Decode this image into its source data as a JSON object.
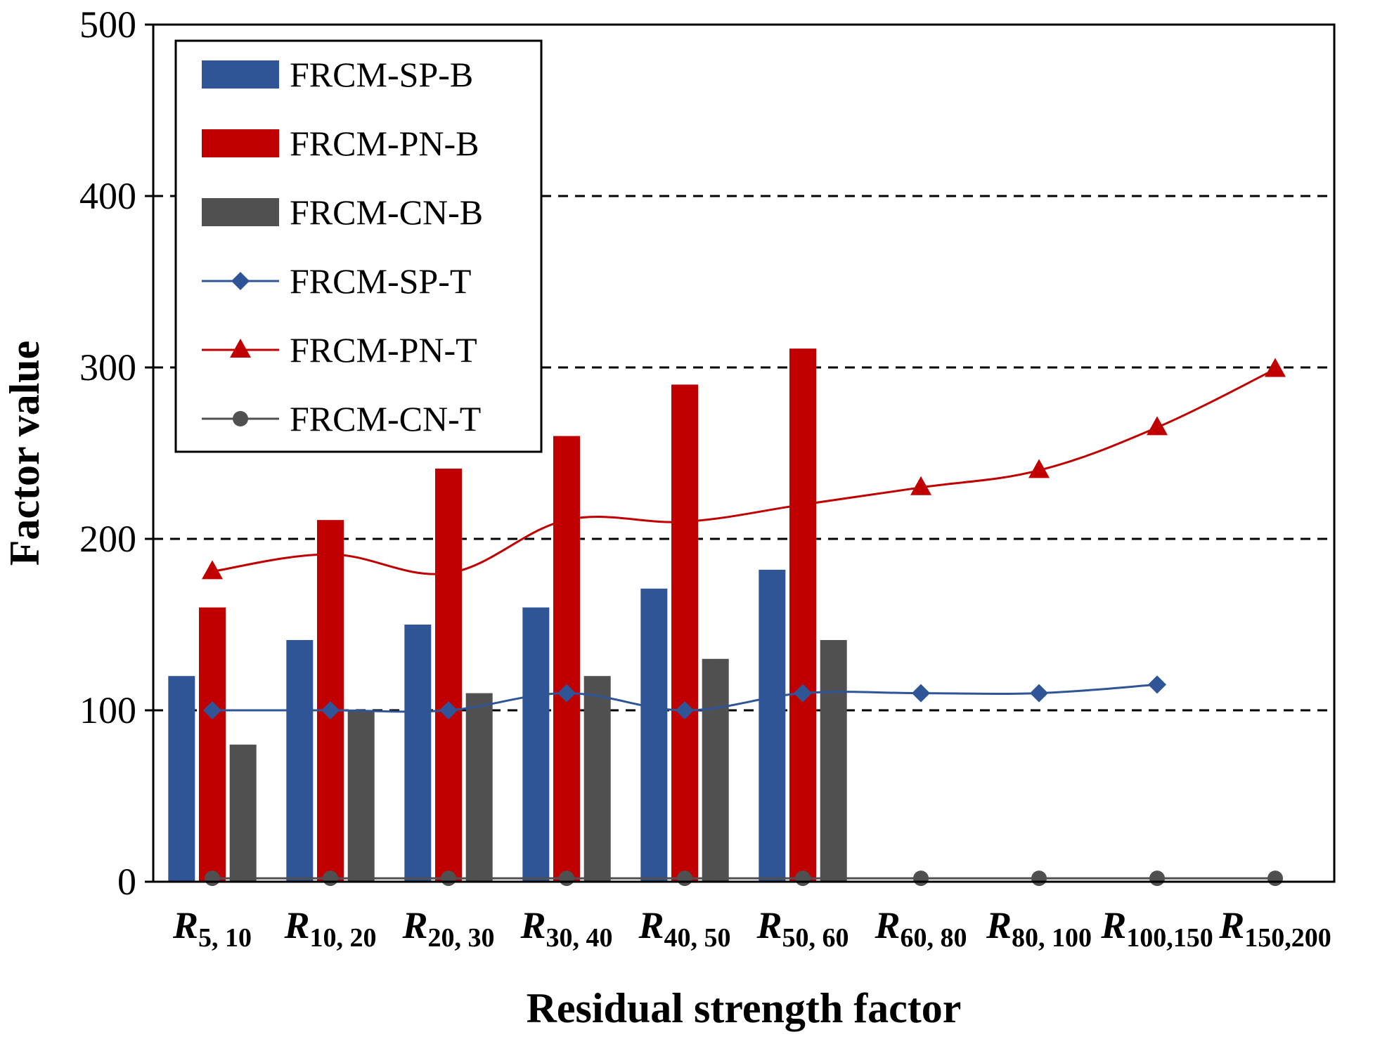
{
  "chart_data": {
    "type": "bar",
    "xlabel": "Residual strength factor",
    "ylabel": "Factor value",
    "ylim": [
      0,
      500
    ],
    "yticks": [
      0,
      100,
      200,
      300,
      400,
      500
    ],
    "grid": "dashed horizontal at 100, 200, 300, 400",
    "legend_position": "top-left",
    "categories": [
      {
        "main": "R",
        "sub": "5, 10"
      },
      {
        "main": "R",
        "sub": "10, 20"
      },
      {
        "main": "R",
        "sub": "20, 30"
      },
      {
        "main": "R",
        "sub": "30, 40"
      },
      {
        "main": "R",
        "sub": "40, 50"
      },
      {
        "main": "R",
        "sub": "50, 60"
      },
      {
        "main": "R",
        "sub": "60, 80"
      },
      {
        "main": "R",
        "sub": "80, 100"
      },
      {
        "main": "R",
        "sub": "100,150"
      },
      {
        "main": "R",
        "sub": "150,200"
      }
    ],
    "bar_series": [
      {
        "name": "FRCM-SP-B",
        "color": "#2F5597",
        "values": [
          120,
          141,
          150,
          160,
          171,
          182,
          null,
          null,
          null,
          null
        ]
      },
      {
        "name": "FRCM-PN-B",
        "color": "#C00000",
        "values": [
          160,
          211,
          241,
          260,
          290,
          311,
          null,
          null,
          null,
          null
        ]
      },
      {
        "name": "FRCM-CN-B",
        "color": "#505050",
        "values": [
          80,
          100,
          110,
          120,
          130,
          141,
          null,
          null,
          null,
          null
        ]
      }
    ],
    "line_series": [
      {
        "name": "FRCM-SP-T",
        "color": "#2F5597",
        "marker": "diamond",
        "values": [
          100,
          100,
          100,
          110,
          100,
          110,
          110,
          110,
          115,
          null
        ]
      },
      {
        "name": "FRCM-PN-T",
        "color": "#C00000",
        "marker": "triangle",
        "values": [
          181,
          191,
          180,
          211,
          210,
          220,
          230,
          240,
          265,
          299
        ]
      },
      {
        "name": "FRCM-CN-T",
        "color": "#505050",
        "marker": "circle",
        "values": [
          2,
          2,
          2,
          2,
          2,
          2,
          2,
          2,
          2,
          2
        ]
      }
    ]
  }
}
